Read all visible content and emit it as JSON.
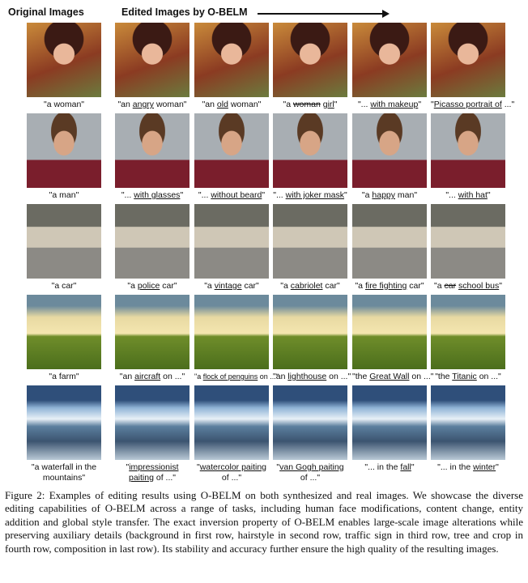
{
  "header": {
    "original": "Original Images",
    "edited": "Edited Images by O-BELM"
  },
  "rows": [
    {
      "kind": "woman",
      "captions": [
        {
          "pre": "\"a woman\"",
          "u": "",
          "post": ""
        },
        {
          "pre": "\"an ",
          "u": "angry",
          "post": " woman\""
        },
        {
          "pre": "\"an ",
          "u": "old",
          "post": " woman\""
        },
        {
          "pre": "\"a ",
          "s": "woman",
          "u": "girl",
          "post": "\""
        },
        {
          "pre": "\"... ",
          "u": "with makeup",
          "post": "\""
        },
        {
          "pre": "\"",
          "u": "Picasso portrait of",
          "post": " ...\""
        }
      ]
    },
    {
      "kind": "man",
      "captions": [
        {
          "pre": "\"a man\"",
          "u": "",
          "post": ""
        },
        {
          "pre": "\"... ",
          "u": "with glasses",
          "post": "\""
        },
        {
          "pre": "\"... ",
          "u": "without beard",
          "post": "\""
        },
        {
          "pre": "\"... ",
          "u": "with joker mask",
          "post": "\""
        },
        {
          "pre": "\"a ",
          "u": "happy",
          "post": " man\""
        },
        {
          "pre": "\"... ",
          "u": "with hat",
          "post": "\""
        }
      ]
    },
    {
      "kind": "car",
      "captions": [
        {
          "pre": "\"a car\"",
          "u": "",
          "post": ""
        },
        {
          "pre": "\"a ",
          "u": "police",
          "post": " car\""
        },
        {
          "pre": "\"a ",
          "u": "vintage",
          "post": " car\""
        },
        {
          "pre": "\"a ",
          "u": "cabriolet",
          "post": " car\""
        },
        {
          "pre": "\"a ",
          "u": "fire fighting",
          "post": " car\""
        },
        {
          "pre": "\"a ",
          "s": "car",
          "u": "school bus",
          "post": "\""
        }
      ]
    },
    {
      "kind": "farm",
      "captions": [
        {
          "pre": "\"a farm\"",
          "u": "",
          "post": ""
        },
        {
          "pre": "\"an ",
          "u": "aircraft",
          "post": " on ...\""
        },
        {
          "pre": "\"a ",
          "u": "flock of penguins",
          "post": " on ...\"",
          "small": true
        },
        {
          "pre": "\"an ",
          "u": "lighthouse",
          "post": " on ...\""
        },
        {
          "pre": "\"the ",
          "u": "Great Wall",
          "post": " on ...\""
        },
        {
          "pre": "\"the ",
          "u": "Titanic",
          "post": " on ...\""
        }
      ]
    },
    {
      "kind": "water",
      "captions": [
        {
          "pre": "\"a waterfall in the mountains\"",
          "u": "",
          "post": "",
          "wrap": true
        },
        {
          "pre": "\"",
          "u": "impressionist paiting",
          "post": " of ...\"",
          "wrap": true
        },
        {
          "pre": "\"",
          "u": "watercolor paiting",
          "post": " of ...\"",
          "wrap": true
        },
        {
          "pre": "\"",
          "u": "van Gogh paiting",
          "post": " of ...\"",
          "wrap": true
        },
        {
          "pre": "\"... in the ",
          "u": "fall",
          "post": "\""
        },
        {
          "pre": "\"... in the ",
          "u": "winter",
          "post": "\""
        }
      ]
    }
  ],
  "figure_caption": "Figure 2: Examples of editing results using O-BELM on both synthesized and real images. We showcase the diverse editing capabilities of O-BELM across a range of tasks, including human face modifications, content change, entity addition and global style transfer. The exact inversion property of O-BELM enables large-scale image alterations while preserving auxiliary details (background in first row, hairstyle in second row, traffic sign in third row, tree and crop in fourth row, composition in last row). Its stability and accuracy further ensure the high quality of the resulting images."
}
